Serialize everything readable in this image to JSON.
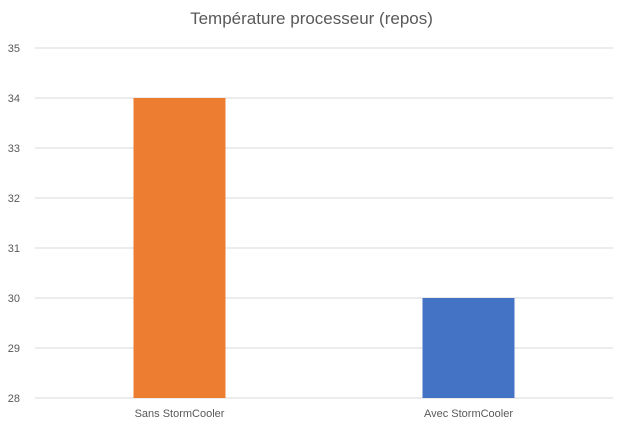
{
  "chart_data": {
    "type": "bar",
    "title": "Température processeur (repos)",
    "categories": [
      "Sans StormCooler",
      "Avec StormCooler"
    ],
    "values": [
      34,
      30
    ],
    "bar_colors": [
      "#ED7D31",
      "#4472C4"
    ],
    "ylim": [
      28,
      35
    ],
    "yticks": [
      "28",
      "29",
      "30",
      "31",
      "32",
      "33",
      "34",
      "35"
    ],
    "xlabel": "",
    "ylabel": "",
    "grid": true,
    "legend": "none"
  }
}
